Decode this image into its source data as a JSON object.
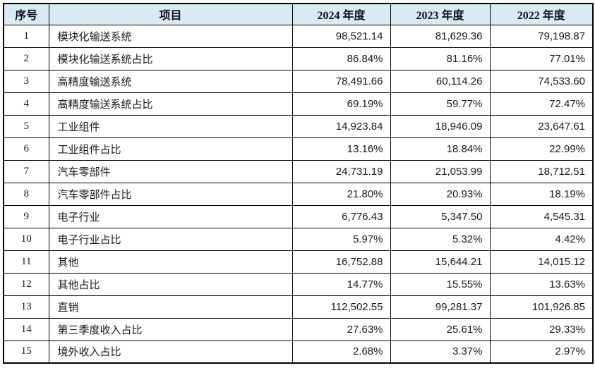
{
  "table": {
    "headers": [
      "序号",
      "项目",
      "2024 年度",
      "2023 年度",
      "2022 年度"
    ],
    "rows": [
      {
        "no": "1",
        "item": "模块化输送系统",
        "y2024": "98,521.14",
        "y2023": "81,629.36",
        "y2022": "79,198.87"
      },
      {
        "no": "2",
        "item": "模块化输送系统占比",
        "y2024": "86.84%",
        "y2023": "81.16%",
        "y2022": "77.01%"
      },
      {
        "no": "3",
        "item": "高精度输送系统",
        "y2024": "78,491.66",
        "y2023": "60,114.26",
        "y2022": "74,533.60"
      },
      {
        "no": "4",
        "item": "高精度输送系统占比",
        "y2024": "69.19%",
        "y2023": "59.77%",
        "y2022": "72.47%"
      },
      {
        "no": "5",
        "item": "工业组件",
        "y2024": "14,923.84",
        "y2023": "18,946.09",
        "y2022": "23,647.61"
      },
      {
        "no": "6",
        "item": "工业组件占比",
        "y2024": "13.16%",
        "y2023": "18.84%",
        "y2022": "22.99%"
      },
      {
        "no": "7",
        "item": "汽车零部件",
        "y2024": "24,731.19",
        "y2023": "21,053.99",
        "y2022": "18,712.51"
      },
      {
        "no": "8",
        "item": "汽车零部件占比",
        "y2024": "21.80%",
        "y2023": "20.93%",
        "y2022": "18.19%"
      },
      {
        "no": "9",
        "item": "电子行业",
        "y2024": "6,776.43",
        "y2023": "5,347.50",
        "y2022": "4,545.31"
      },
      {
        "no": "10",
        "item": "电子行业占比",
        "y2024": "5.97%",
        "y2023": "5.32%",
        "y2022": "4.42%"
      },
      {
        "no": "11",
        "item": "其他",
        "y2024": "16,752.88",
        "y2023": "15,644.21",
        "y2022": "14,015.12"
      },
      {
        "no": "12",
        "item": "其他占比",
        "y2024": "14.77%",
        "y2023": "15.55%",
        "y2022": "13.63%"
      },
      {
        "no": "13",
        "item": "直销",
        "y2024": "112,502.55",
        "y2023": "99,281.37",
        "y2022": "101,926.85"
      },
      {
        "no": "14",
        "item": "第三季度收入占比",
        "y2024": "27.63%",
        "y2023": "25.61%",
        "y2022": "29.33%"
      },
      {
        "no": "15",
        "item": "境外收入占比",
        "y2024": "2.68%",
        "y2023": "3.37%",
        "y2022": "2.97%"
      }
    ]
  },
  "colors": {
    "header_bg": "#d9eaf2",
    "header_text": "#10101c",
    "border": "#000000",
    "text": "#1a1a1a"
  }
}
